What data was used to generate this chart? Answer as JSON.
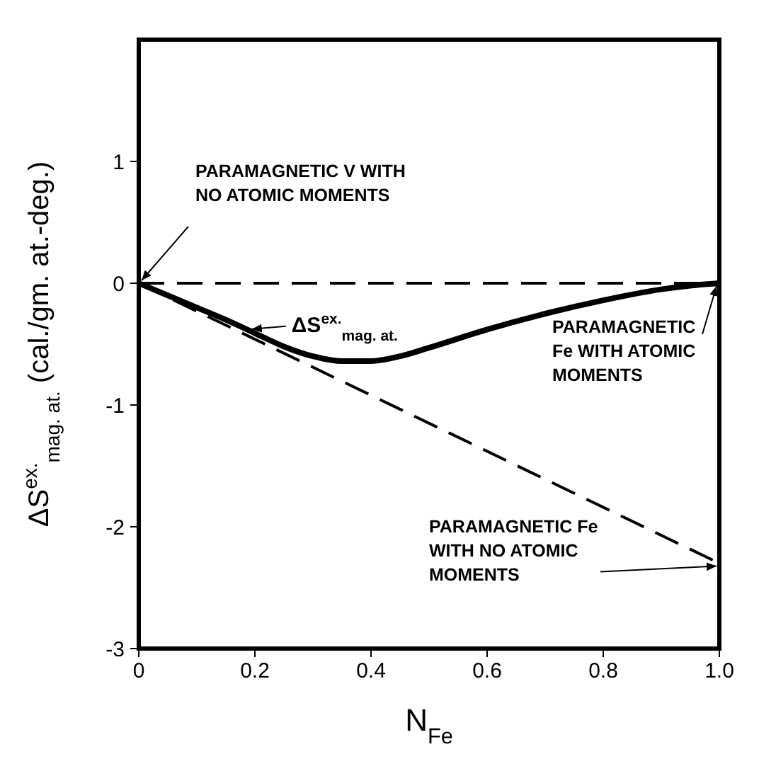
{
  "chart_data": {
    "type": "line",
    "xlabel": "N$_{Fe}$",
    "ylabel": "ΔS$^{ex.}$$_{mag. at.}$ (cal./gm. at.-deg.)",
    "xlim": [
      0,
      1
    ],
    "xticks": [
      0,
      0.2,
      0.4,
      0.6,
      0.8,
      {
        "value": 1,
        "label": "1.0"
      }
    ],
    "ylim": [
      -3,
      2
    ],
    "yticks": [
      -3,
      -2,
      -1,
      0,
      1
    ],
    "grid": false,
    "legend": false,
    "marker": "none",
    "series": [
      {
        "color": "#000000",
        "line_style": "solid",
        "x": [
          0,
          0.05,
          0.1,
          0.15,
          0.2,
          0.25,
          0.3,
          0.35,
          0.4,
          0.45,
          0.5,
          0.6,
          0.7,
          0.8,
          0.9,
          0.95,
          1
        ],
        "values": [
          0,
          -0.1,
          -0.2,
          -0.3,
          -0.41,
          -0.52,
          -0.6,
          -0.64,
          -0.64,
          -0.6,
          -0.53,
          -0.38,
          -0.25,
          -0.14,
          -0.05,
          -0.02,
          0
        ]
      },
      {
        "color": "#000000",
        "line_style": "dashed",
        "x": [
          0,
          1
        ],
        "values": [
          0,
          0
        ]
      },
      {
        "color": "#000000",
        "line_style": "dashed",
        "x": [
          0,
          1
        ],
        "values": [
          0,
          -2.3
        ]
      }
    ],
    "annotations": [
      {
        "text": "PARAMAGNETIC V WITH NO ATOMIC MOMENTS",
        "x": 0,
        "y": 0
      },
      {
        "text": "ΔS$^{ex.}$$_{mag. at.}$",
        "x": 0.19,
        "y": -0.4
      },
      {
        "text": "PARAMAGNETIC Fe WITH ATOMIC MOMENTS",
        "x": 1,
        "y": 0
      },
      {
        "text": "PARAMAGNETIC Fe WITH NO ATOMIC MOMENTS",
        "x": 1,
        "y": -2.3
      }
    ]
  }
}
